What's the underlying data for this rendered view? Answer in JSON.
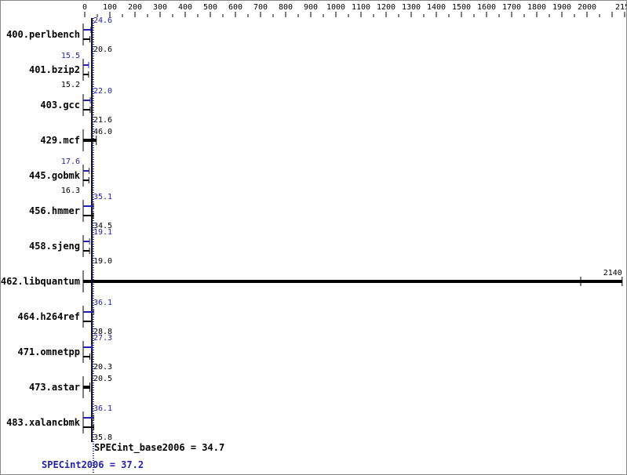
{
  "chart_data": {
    "type": "bar",
    "orientation": "horizontal",
    "xlim": [
      0,
      2150
    ],
    "x_ticks": [
      0,
      100,
      200,
      300,
      400,
      500,
      600,
      700,
      800,
      900,
      1000,
      1100,
      1200,
      1300,
      1400,
      1500,
      1600,
      1700,
      1800,
      1900,
      2000,
      2150
    ],
    "grid": false,
    "colors": {
      "peak": "#2222aa",
      "base": "#000000"
    },
    "categories": [
      "400.perlbench",
      "401.bzip2",
      "403.gcc",
      "429.mcf",
      "445.gobmk",
      "456.hmmer",
      "458.sjeng",
      "462.libquantum",
      "464.h264ref",
      "471.omnetpp",
      "473.astar",
      "483.xalancbmk"
    ],
    "series": [
      {
        "name": "SPECint2006",
        "values": [
          24.6,
          15.5,
          22.0,
          null,
          17.6,
          35.1,
          19.1,
          null,
          36.1,
          27.3,
          null,
          36.1
        ]
      },
      {
        "name": "SPECint_base2006",
        "values": [
          20.6,
          15.2,
          21.6,
          46.0,
          16.3,
          34.5,
          19.0,
          2140,
          28.8,
          20.3,
          20.5,
          35.8
        ]
      }
    ],
    "summary": {
      "base_label": "SPECint_base2006 = 34.7",
      "base_value": 34.7,
      "peak_label": "SPECint2006 = 37.2",
      "peak_value": 37.2
    }
  }
}
